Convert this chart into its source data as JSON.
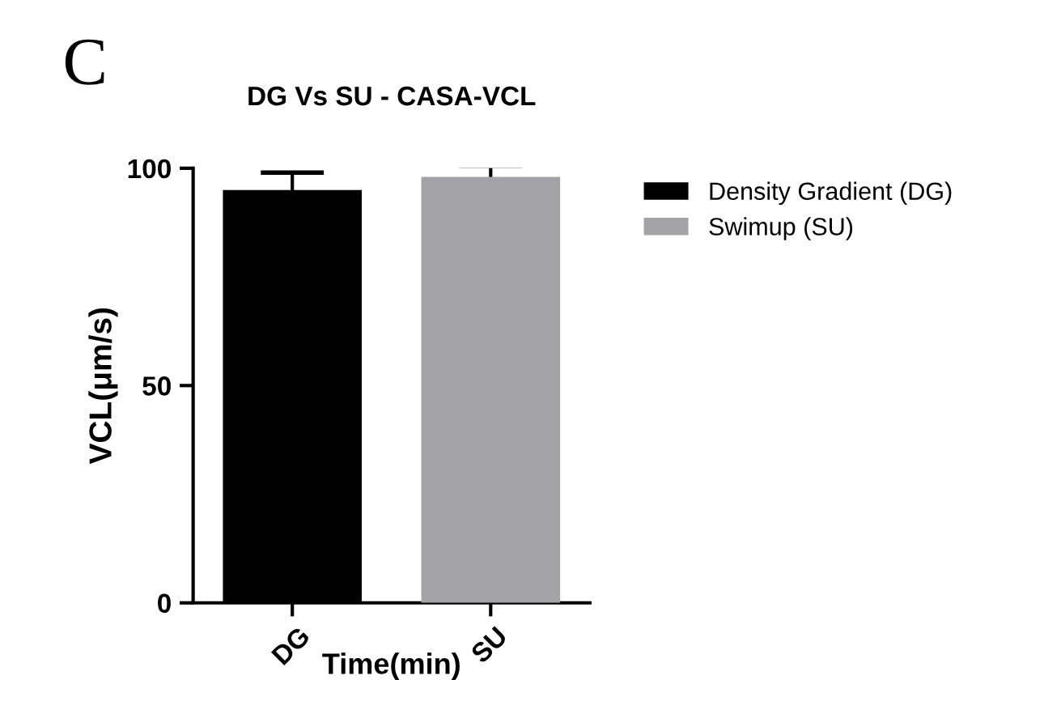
{
  "chart_data": {
    "type": "bar",
    "title": "DG Vs SU - CASA-VCL",
    "xlabel": "Time(min)",
    "ylabel": "VCL(μm/s)",
    "annotations": [
      "C"
    ],
    "categories": [
      "DG",
      "SU"
    ],
    "series": [
      {
        "name": "Density Gradient (DG)",
        "color": "#000000",
        "values": [
          95,
          null
        ],
        "errors": [
          4,
          null
        ]
      },
      {
        "name": "Swimup (SU)",
        "color": "#a3a2a7",
        "values": [
          null,
          98
        ],
        "errors": [
          null,
          2.5
        ]
      }
    ],
    "ylim": [
      0,
      100
    ],
    "yticks": [
      0,
      50,
      100
    ],
    "grid": false,
    "legend": "right"
  }
}
